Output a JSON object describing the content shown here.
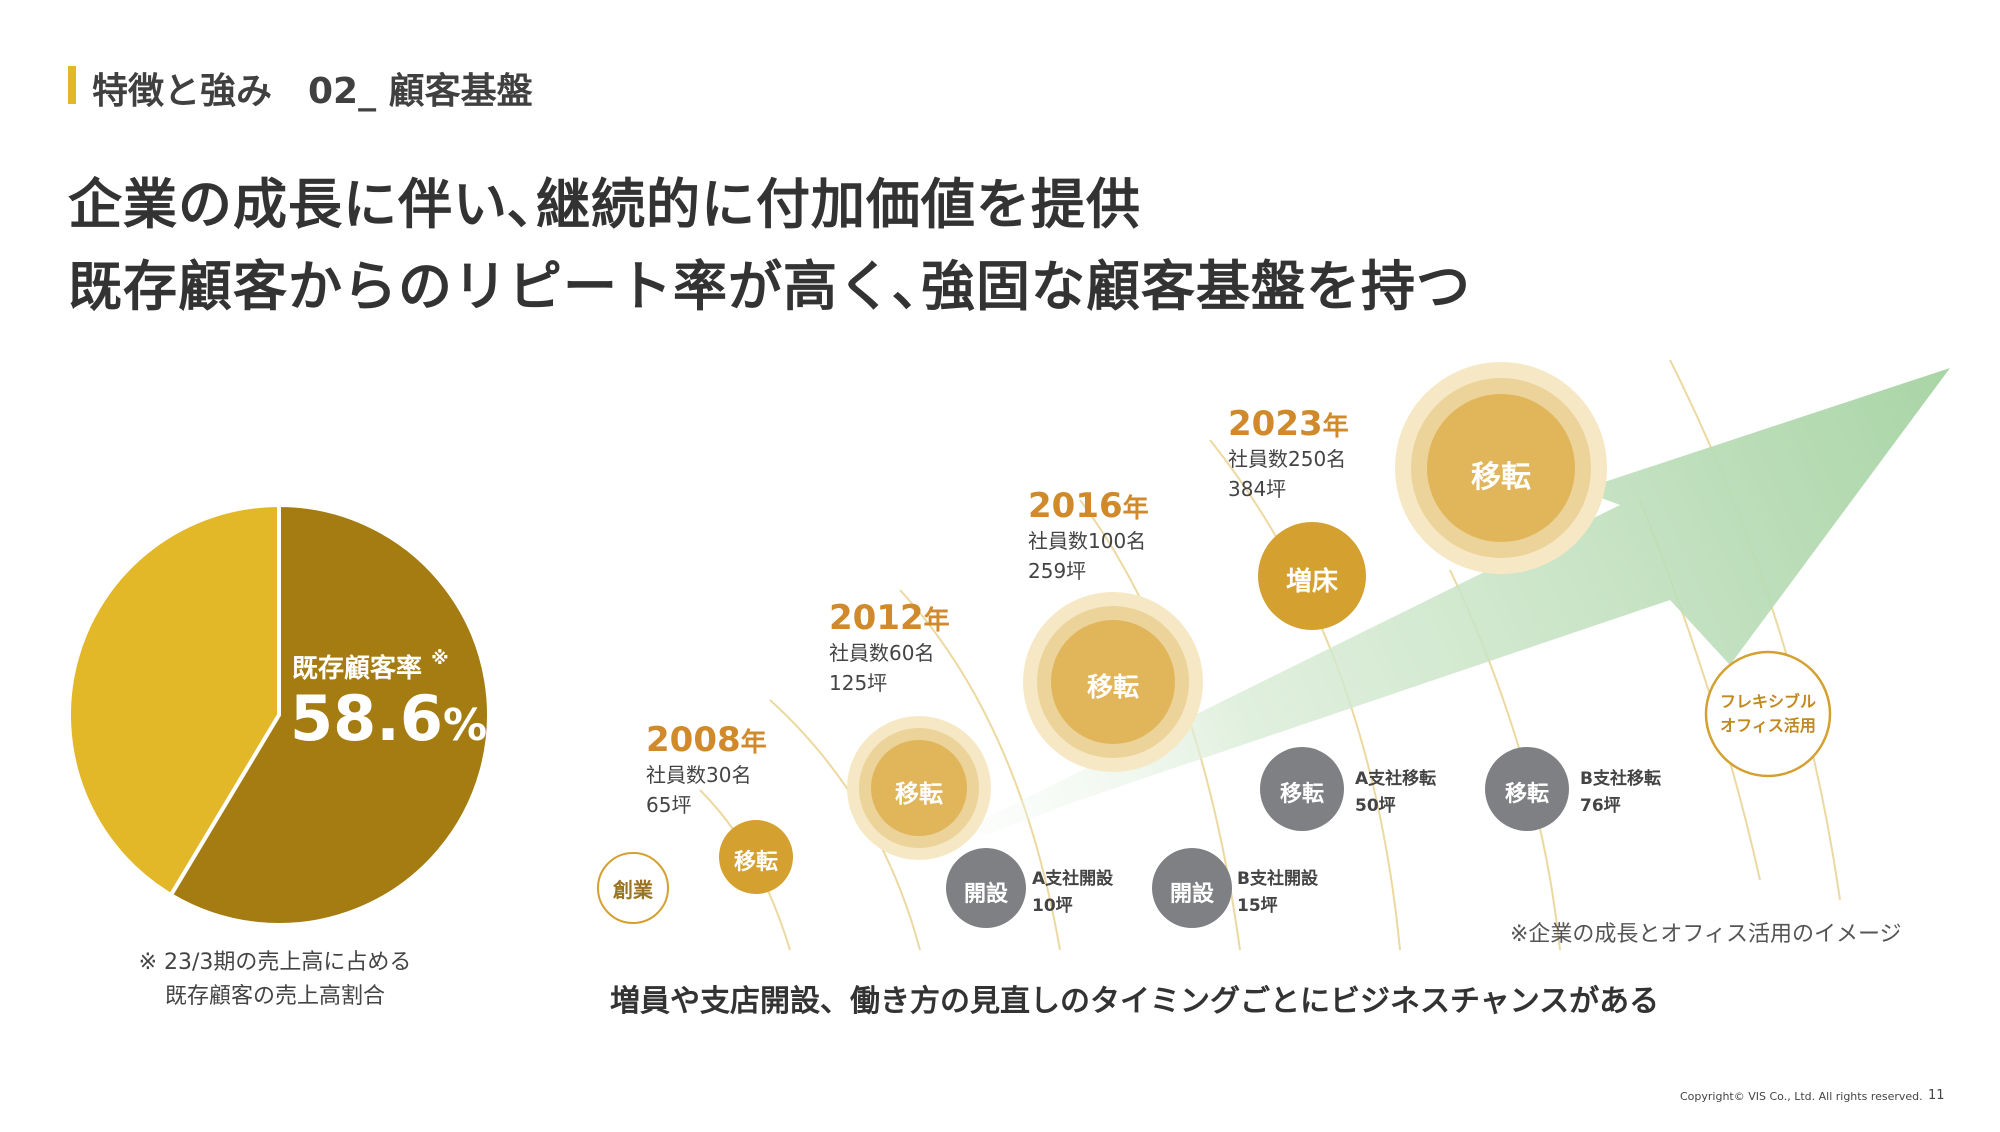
{
  "header": {
    "section": "特徴と強み　02_ 顧客基盤",
    "headline_line1": "企業の成長に伴い､継続的に付加価値を提供",
    "headline_line2": "既存顧客からのリピート率が高く､強固な顧客基盤を持つ"
  },
  "pie": {
    "label": "既存顧客率",
    "label_mark": "※",
    "value_text": "58.6",
    "value_unit": "%",
    "share": 58.6,
    "colors": {
      "main": "#a47c12",
      "rest": "#e2b728"
    },
    "note_line1": "※ 23/3期の売上高に占める",
    "note_line2": "既存顧客の売上高割合"
  },
  "timeline": {
    "founding": "創業",
    "milestones": [
      {
        "year": "2008",
        "suffix": "年",
        "employees": "社員数30名",
        "area": "65坪",
        "event": "移転"
      },
      {
        "year": "2012",
        "suffix": "年",
        "employees": "社員数60名",
        "area": "125坪",
        "event": "移転"
      },
      {
        "year": "2016",
        "suffix": "年",
        "employees": "社員数100名",
        "area": "259坪",
        "event": "移転"
      },
      {
        "year": "2023",
        "suffix": "年",
        "employees": "社員数250名",
        "area": "384坪",
        "event_expand": "増床",
        "event": "移転"
      }
    ],
    "branches": [
      {
        "badge": "開設",
        "title": "A支社開設",
        "area": "10坪"
      },
      {
        "badge": "開設",
        "title": "B支社開設",
        "area": "15坪"
      },
      {
        "badge": "移転",
        "title": "A支社移転",
        "area": "50坪"
      },
      {
        "badge": "移転",
        "title": "B支社移転",
        "area": "76坪"
      }
    ],
    "flexible_line1": "フレキシブル",
    "flexible_line2": "オフィス活用",
    "colors": {
      "gold": "#d4a030",
      "gray": "#7f8083",
      "arrow": "#a8d4a5",
      "year": "#d08a2c"
    }
  },
  "image_note": "※企業の成長とオフィス活用のイメージ",
  "bottom_message": "増員や支店開設、働き方の見直しのタイミングごとにビジネスチャンスがある",
  "footer": {
    "copyright": "Copyright© VIS Co., Ltd. All rights reserved.",
    "page": "11"
  }
}
